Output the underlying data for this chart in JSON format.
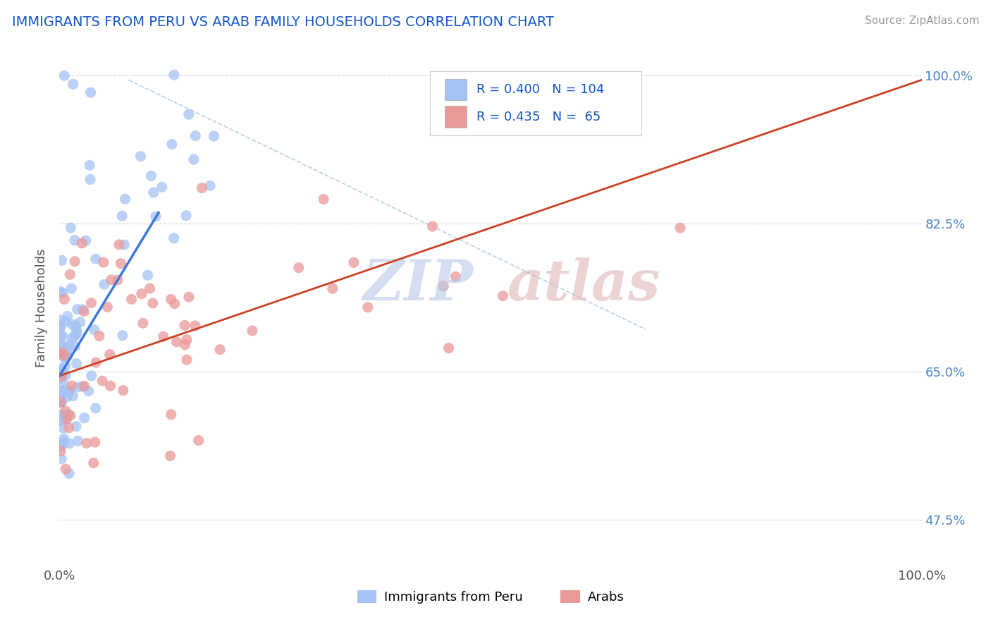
{
  "title": "IMMIGRANTS FROM PERU VS ARAB FAMILY HOUSEHOLDS CORRELATION CHART",
  "source": "Source: ZipAtlas.com",
  "ylabel": "Family Households",
  "ytick_vals": [
    0.475,
    0.65,
    0.825,
    1.0
  ],
  "ytick_labels": [
    "47.5%",
    "65.0%",
    "82.5%",
    "100.0%"
  ],
  "legend1_label": "Immigrants from Peru",
  "legend2_label": "Arabs",
  "R1": 0.4,
  "N1": 104,
  "R2": 0.435,
  "N2": 65,
  "blue_color": "#a4c2f4",
  "pink_color": "#ea9999",
  "blue_line_color": "#3c78d8",
  "pink_line_color": "#cc4125",
  "title_color": "#1155cc",
  "source_color": "#999999",
  "legend_color": "#1155cc",
  "watermark_zip_color": "#b7c9e8",
  "watermark_atlas_color": "#dbb0b0",
  "blue_trend_x": [
    0.0,
    0.115
  ],
  "blue_trend_y": [
    0.645,
    0.838
  ],
  "pink_trend_x": [
    0.0,
    1.0
  ],
  "pink_trend_y": [
    0.645,
    0.995
  ],
  "dash_line_x": [
    0.08,
    0.68
  ],
  "dash_line_y": [
    0.995,
    0.7
  ],
  "xlim": [
    0.0,
    1.0
  ],
  "ylim": [
    0.42,
    1.03
  ],
  "figsize": [
    14.06,
    8.92
  ],
  "dpi": 100,
  "seed": 42
}
